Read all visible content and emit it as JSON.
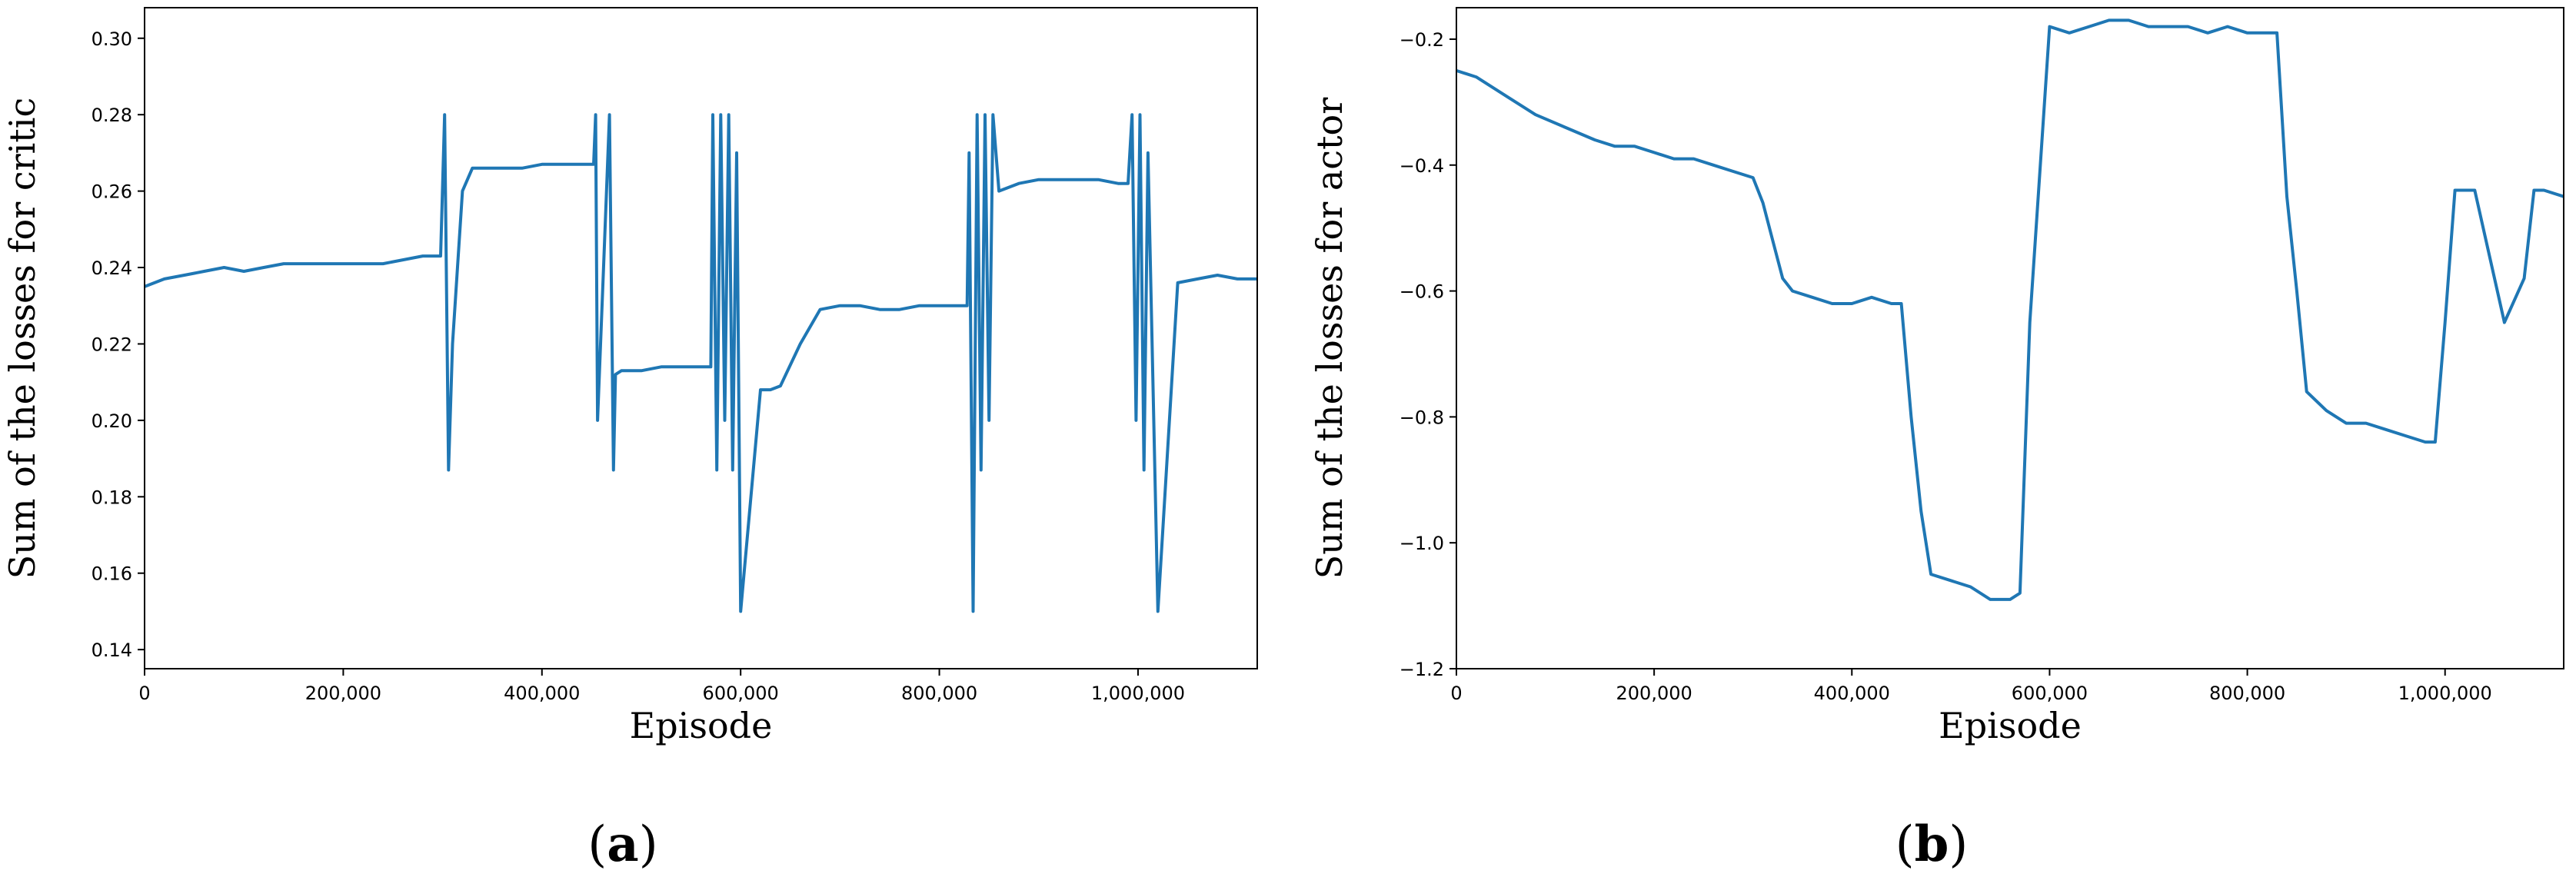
{
  "chart_data": [
    {
      "type": "line",
      "panel_label": "a",
      "xlabel": "Episode",
      "ylabel": "Sum of the losses for critic",
      "xlim": [
        0,
        1120000
      ],
      "ylim": [
        0.135,
        0.308
      ],
      "x_ticks": [
        0,
        200000,
        400000,
        600000,
        800000,
        1000000
      ],
      "x_tick_labels": [
        "0",
        "200,000",
        "400,000",
        "600,000",
        "800,000",
        "1,000,000"
      ],
      "y_ticks": [
        0.14,
        0.16,
        0.18,
        0.2,
        0.22,
        0.24,
        0.26,
        0.28,
        0.3
      ],
      "y_tick_labels": [
        "0.14",
        "0.16",
        "0.18",
        "0.20",
        "0.22",
        "0.24",
        "0.26",
        "0.28",
        "0.30"
      ],
      "grid": false,
      "series": [
        {
          "x": [
            0,
            20000,
            40000,
            60000,
            80000,
            100000,
            120000,
            140000,
            160000,
            180000,
            200000,
            220000,
            240000,
            260000,
            280000,
            298000,
            302000,
            306000,
            310000,
            320000,
            330000,
            350000,
            380000,
            400000,
            420000,
            440000,
            452000,
            454000,
            456000,
            462000,
            468000,
            472000,
            474000,
            480000,
            500000,
            520000,
            540000,
            560000,
            570000,
            572000,
            576000,
            580000,
            584000,
            588000,
            592000,
            596000,
            600000,
            620000,
            630000,
            640000,
            660000,
            680000,
            700000,
            720000,
            740000,
            760000,
            780000,
            800000,
            820000,
            828000,
            830000,
            834000,
            838000,
            842000,
            846000,
            850000,
            854000,
            860000,
            880000,
            900000,
            920000,
            940000,
            960000,
            980000,
            990000,
            994000,
            998000,
            1002000,
            1006000,
            1010000,
            1020000,
            1040000,
            1060000,
            1080000,
            1100000,
            1120000
          ],
          "y": [
            0.235,
            0.237,
            0.238,
            0.239,
            0.24,
            0.239,
            0.24,
            0.241,
            0.241,
            0.241,
            0.241,
            0.241,
            0.241,
            0.242,
            0.243,
            0.243,
            0.28,
            0.187,
            0.22,
            0.26,
            0.266,
            0.266,
            0.266,
            0.267,
            0.267,
            0.267,
            0.267,
            0.28,
            0.2,
            0.24,
            0.28,
            0.187,
            0.212,
            0.213,
            0.213,
            0.214,
            0.214,
            0.214,
            0.214,
            0.28,
            0.187,
            0.28,
            0.2,
            0.28,
            0.187,
            0.27,
            0.15,
            0.208,
            0.208,
            0.209,
            0.22,
            0.229,
            0.23,
            0.23,
            0.229,
            0.229,
            0.23,
            0.23,
            0.23,
            0.23,
            0.27,
            0.15,
            0.28,
            0.187,
            0.28,
            0.2,
            0.28,
            0.26,
            0.262,
            0.263,
            0.263,
            0.263,
            0.263,
            0.262,
            0.262,
            0.28,
            0.2,
            0.28,
            0.187,
            0.27,
            0.15,
            0.236,
            0.237,
            0.238,
            0.237,
            0.237
          ]
        }
      ]
    },
    {
      "type": "line",
      "panel_label": "b",
      "xlabel": "Episode",
      "ylabel": "Sum of the losses for actor",
      "xlim": [
        0,
        1120000
      ],
      "ylim": [
        -1.2,
        -0.15
      ],
      "x_ticks": [
        0,
        200000,
        400000,
        600000,
        800000,
        1000000
      ],
      "x_tick_labels": [
        "0",
        "200,000",
        "400,000",
        "600,000",
        "800,000",
        "1,000,000"
      ],
      "y_ticks": [
        -1.2,
        -1.0,
        -0.8,
        -0.6,
        -0.4,
        -0.2
      ],
      "y_tick_labels": [
        "−1.2",
        "−1.0",
        "−0.8",
        "−0.6",
        "−0.4",
        "−0.2"
      ],
      "grid": false,
      "series": [
        {
          "x": [
            0,
            20000,
            50000,
            80000,
            110000,
            140000,
            160000,
            180000,
            200000,
            220000,
            240000,
            260000,
            280000,
            300000,
            310000,
            320000,
            330000,
            340000,
            360000,
            380000,
            400000,
            420000,
            440000,
            450000,
            460000,
            470000,
            480000,
            500000,
            520000,
            540000,
            560000,
            570000,
            580000,
            600000,
            620000,
            640000,
            660000,
            680000,
            700000,
            720000,
            740000,
            760000,
            780000,
            800000,
            830000,
            840000,
            850000,
            860000,
            880000,
            900000,
            920000,
            940000,
            960000,
            980000,
            990000,
            1000000,
            1010000,
            1030000,
            1060000,
            1080000,
            1090000,
            1100000,
            1120000
          ],
          "y": [
            -0.25,
            -0.26,
            -0.29,
            -0.32,
            -0.34,
            -0.36,
            -0.37,
            -0.37,
            -0.38,
            -0.39,
            -0.39,
            -0.4,
            -0.41,
            -0.42,
            -0.46,
            -0.52,
            -0.58,
            -0.6,
            -0.61,
            -0.62,
            -0.62,
            -0.61,
            -0.62,
            -0.62,
            -0.8,
            -0.95,
            -1.05,
            -1.06,
            -1.07,
            -1.09,
            -1.09,
            -1.08,
            -0.65,
            -0.18,
            -0.19,
            -0.18,
            -0.17,
            -0.17,
            -0.18,
            -0.18,
            -0.18,
            -0.19,
            -0.18,
            -0.19,
            -0.19,
            -0.45,
            -0.6,
            -0.76,
            -0.79,
            -0.81,
            -0.81,
            -0.82,
            -0.83,
            -0.84,
            -0.84,
            -0.65,
            -0.44,
            -0.44,
            -0.65,
            -0.58,
            -0.44,
            -0.44,
            -0.45
          ]
        }
      ]
    }
  ],
  "captions": [
    "(",
    "a",
    ")",
    "(",
    "b",
    ")"
  ]
}
